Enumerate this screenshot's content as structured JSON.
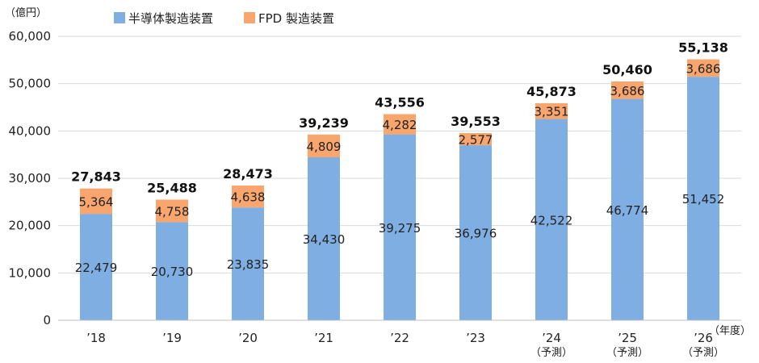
{
  "chart_data": {
    "type": "bar",
    "stacked": true,
    "y_unit_label": "（億円）",
    "x_unit_label": "（年度）",
    "categories": [
      "’18",
      "’19",
      "’20",
      "’21",
      "’22",
      "’23",
      "’24",
      "’25",
      "’26"
    ],
    "category_sublabels": [
      "",
      "",
      "",
      "",
      "",
      "",
      "（予測）",
      "（予測）",
      "（予測）"
    ],
    "series": [
      {
        "name": "半導体製造装置",
        "color": "#7eaee2",
        "values": [
          22479,
          20730,
          23835,
          34430,
          39275,
          36976,
          42522,
          46774,
          51452
        ],
        "labels": [
          "22,479",
          "20,730",
          "23,835",
          "34,430",
          "39,275",
          "36,976",
          "42,522",
          "46,774",
          "51,452"
        ]
      },
      {
        "name": "FPD 製造装置",
        "color": "#f9a66e",
        "values": [
          5364,
          4758,
          4638,
          4809,
          4282,
          2577,
          3351,
          3686,
          3686
        ],
        "labels": [
          "5,364",
          "4,758",
          "4,638",
          "4,809",
          "4,282",
          "2,577",
          "3,351",
          "3,686",
          "3,686"
        ]
      }
    ],
    "totals": [
      27843,
      25488,
      28473,
      39239,
      43556,
      39553,
      45873,
      50460,
      55138
    ],
    "total_labels": [
      "27,843",
      "25,488",
      "28,473",
      "39,239",
      "43,556",
      "39,553",
      "45,873",
      "50,460",
      "55,138"
    ],
    "ylim": [
      0,
      60000
    ],
    "yticks": [
      0,
      10000,
      20000,
      30000,
      40000,
      50000,
      60000
    ],
    "ytick_labels": [
      "0",
      "10,000",
      "20,000",
      "30,000",
      "40,000",
      "50,000",
      "60,000"
    ],
    "grid": true,
    "legend_position": "top-left"
  }
}
